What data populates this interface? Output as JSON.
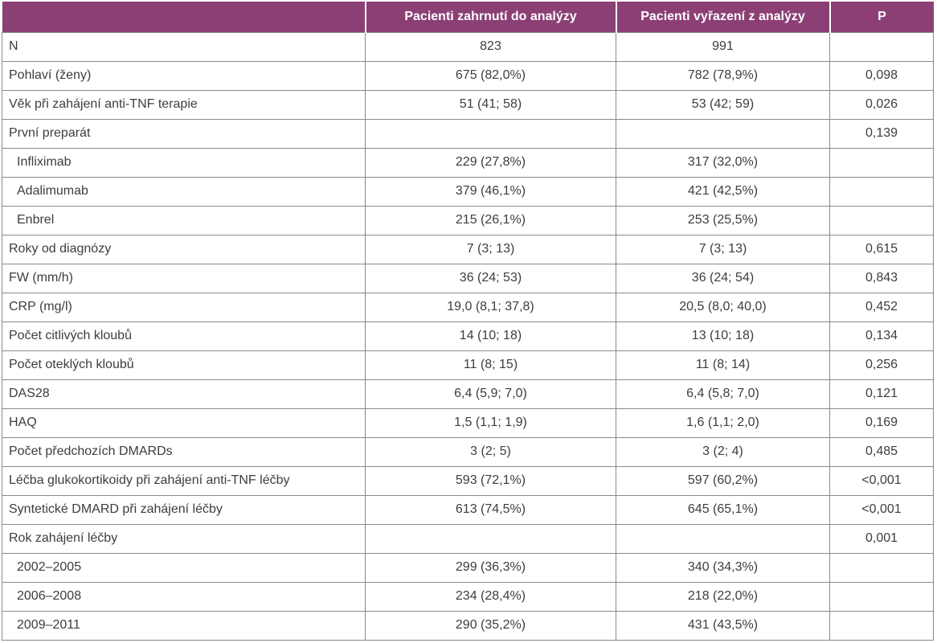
{
  "table": {
    "headers": {
      "label": "",
      "included": "Pacienti zahrnutí do analýzy",
      "excluded": "Pacienti vyřazení z analýzy",
      "p": "P"
    },
    "rows": [
      {
        "label": "N",
        "included": "823",
        "excluded": "991",
        "p": ""
      },
      {
        "label": "Pohlaví (ženy)",
        "included": "675 (82,0%)",
        "excluded": "782 (78,9%)",
        "p": "0,098"
      },
      {
        "label": "Věk při zahájení anti-TNF terapie",
        "included": "51 (41; 58)",
        "excluded": "53 (42; 59)",
        "p": "0,026"
      },
      {
        "label": "První preparát",
        "included": "",
        "excluded": "",
        "p": "0,139"
      },
      {
        "label": "Infliximab",
        "included": "229 (27,8%)",
        "excluded": "317 (32,0%)",
        "p": ""
      },
      {
        "label": "Adalimumab",
        "included": "379 (46,1%)",
        "excluded": "421 (42,5%)",
        "p": ""
      },
      {
        "label": "Enbrel",
        "included": "215 (26,1%)",
        "excluded": "253 (25,5%)",
        "p": ""
      },
      {
        "label": "Roky od diagnózy",
        "included": "7 (3; 13)",
        "excluded": "7 (3; 13)",
        "p": "0,615"
      },
      {
        "label": "FW (mm/h)",
        "included": "36 (24; 53)",
        "excluded": "36 (24; 54)",
        "p": "0,843"
      },
      {
        "label": "CRP (mg/l)",
        "included": "19,0 (8,1; 37,8)",
        "excluded": "20,5 (8,0; 40,0)",
        "p": "0,452"
      },
      {
        "label": "Počet citlivých kloubů",
        "included": "14 (10; 18)",
        "excluded": "13 (10; 18)",
        "p": "0,134"
      },
      {
        "label": "Počet oteklých kloubů",
        "included": "11 (8; 15)",
        "excluded": "11 (8; 14)",
        "p": "0,256"
      },
      {
        "label": "DAS28",
        "included": "6,4 (5,9; 7,0)",
        "excluded": "6,4 (5,8; 7,0)",
        "p": "0,121"
      },
      {
        "label": "HAQ",
        "included": "1,5 (1,1; 1,9)",
        "excluded": "1,6 (1,1; 2,0)",
        "p": "0,169"
      },
      {
        "label": "Počet předchozích DMARDs",
        "included": "3 (2; 5)",
        "excluded": "3 (2; 4)",
        "p": "0,485"
      },
      {
        "label": "Léčba glukokortikoidy při zahájení anti-TNF léčby",
        "included": "593 (72,1%)",
        "excluded": "597 (60,2%)",
        "p": "<0,001"
      },
      {
        "label": "Syntetické DMARD při zahájení léčby",
        "included": "613 (74,5%)",
        "excluded": "645 (65,1%)",
        "p": "<0,001"
      },
      {
        "label": "Rok zahájení léčby",
        "included": "",
        "excluded": "",
        "p": "0,001"
      },
      {
        "label": "2002–2005",
        "included": "299 (36,3%)",
        "excluded": "340 (34,3%)",
        "p": ""
      },
      {
        "label": "2006–2008",
        "included": "234 (28,4%)",
        "excluded": "218 (22,0%)",
        "p": ""
      },
      {
        "label": "2009–2011",
        "included": "290 (35,2%)",
        "excluded": "431 (43,5%)",
        "p": ""
      }
    ]
  },
  "colors": {
    "header_bg": "#8b3f75",
    "header_text": "#ffffff",
    "border": "#8a8a8a",
    "text": "#3d3d3d"
  }
}
